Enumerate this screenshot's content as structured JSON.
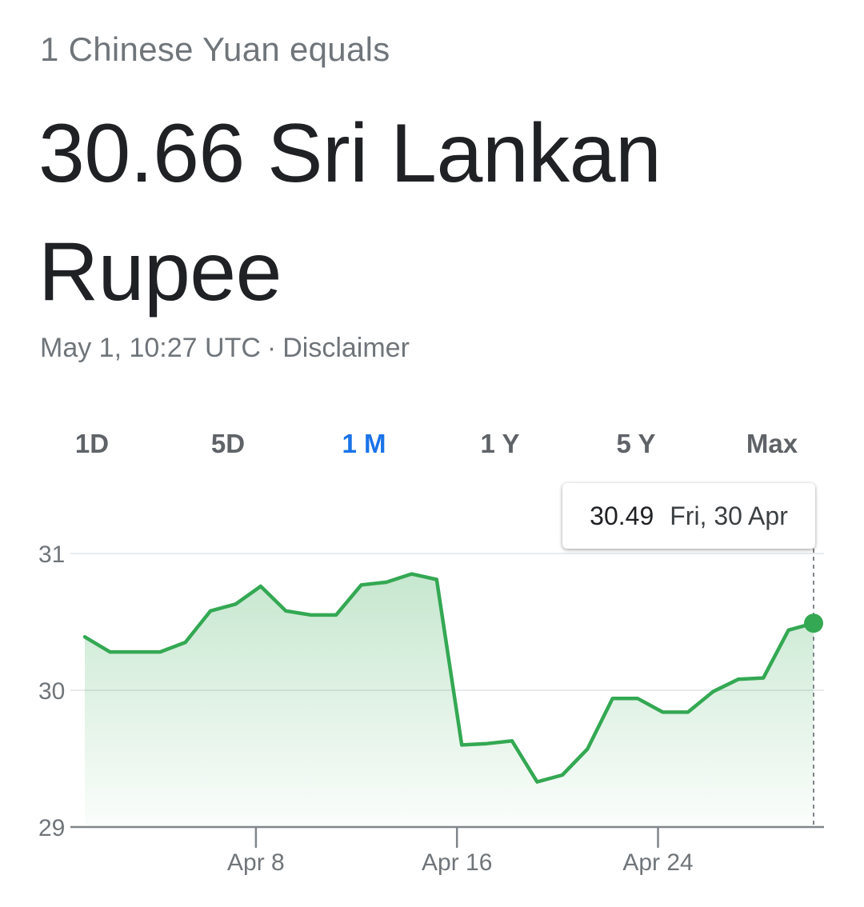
{
  "header": {
    "subtitle": "1 Chinese Yuan equals",
    "headline": "30.66 Sri Lankan Rupee",
    "timestamp": "May 1, 10:27 UTC",
    "separator": "·",
    "disclaimer": "Disclaimer"
  },
  "tabs": [
    {
      "label": "1D",
      "active": false
    },
    {
      "label": "5D",
      "active": false
    },
    {
      "label": "1 M",
      "active": true
    },
    {
      "label": "1 Y",
      "active": false
    },
    {
      "label": "5 Y",
      "active": false
    },
    {
      "label": "Max",
      "active": false
    }
  ],
  "tooltip": {
    "value": "30.49",
    "date": "Fri, 30 Apr"
  },
  "colors": {
    "line": "#34a853",
    "accent": "#1a73e8",
    "grid": "#e8eaed",
    "axis": "#80868b"
  },
  "chart_data": {
    "type": "area",
    "title": "",
    "xlabel": "",
    "ylabel": "",
    "ylim": [
      29,
      31
    ],
    "yticks": [
      29,
      30,
      31
    ],
    "xticks": [
      "Apr 8",
      "Apr 16",
      "Apr 24"
    ],
    "grid": true,
    "x": [
      "Apr 1",
      "Apr 2",
      "Apr 3",
      "Apr 4",
      "Apr 5",
      "Apr 6",
      "Apr 7",
      "Apr 8",
      "Apr 9",
      "Apr 10",
      "Apr 11",
      "Apr 12",
      "Apr 13",
      "Apr 14",
      "Apr 15",
      "Apr 16",
      "Apr 17",
      "Apr 18",
      "Apr 19",
      "Apr 20",
      "Apr 21",
      "Apr 22",
      "Apr 23",
      "Apr 24",
      "Apr 25",
      "Apr 26",
      "Apr 27",
      "Apr 28",
      "Apr 29",
      "Apr 30"
    ],
    "series": [
      {
        "values": [
          30.39,
          30.28,
          30.28,
          30.28,
          30.35,
          30.58,
          30.63,
          30.76,
          30.58,
          30.55,
          30.55,
          30.77,
          30.79,
          30.85,
          30.81,
          29.6,
          29.61,
          29.63,
          29.33,
          29.38,
          29.57,
          29.94,
          29.94,
          29.84,
          29.84,
          29.99,
          30.08,
          30.09,
          30.44,
          30.49
        ]
      }
    ],
    "highlight": {
      "x": "Apr 30",
      "value": 30.49
    }
  }
}
